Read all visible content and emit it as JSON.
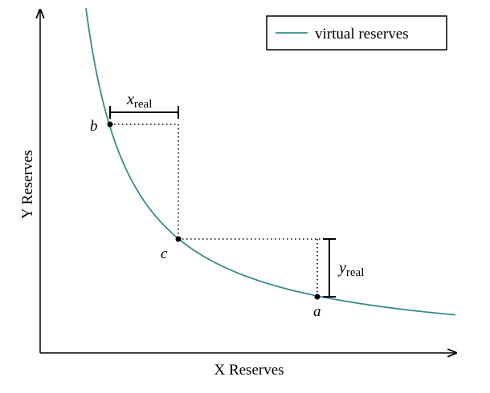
{
  "axes": {
    "x_label": "X Reserves",
    "y_label": "Y Reserves"
  },
  "legend": {
    "label": "virtual reserves"
  },
  "points": {
    "a": "a",
    "b": "b",
    "c": "c"
  },
  "brackets": {
    "x_real": {
      "text": "x",
      "subscript": "real"
    },
    "y_real": {
      "text": "y",
      "subscript": "real"
    }
  }
}
